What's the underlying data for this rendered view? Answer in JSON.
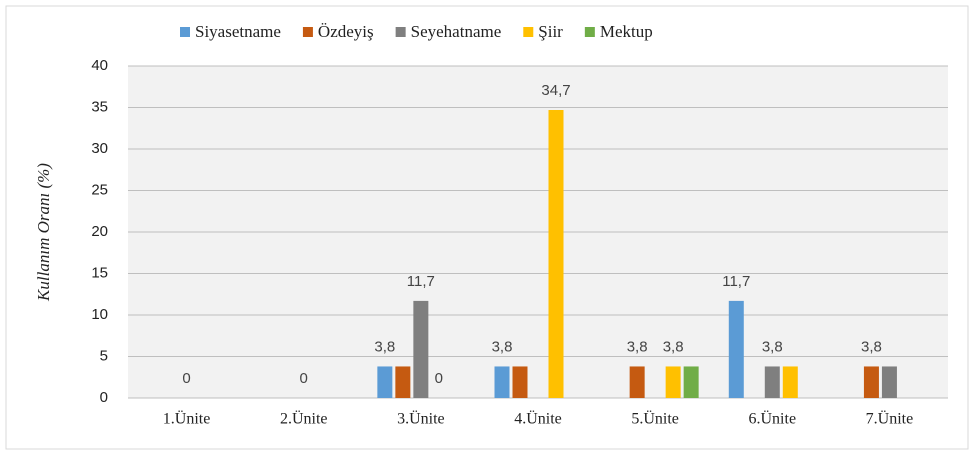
{
  "chart_data": {
    "type": "bar",
    "y_label": "Kullanım Oranı (%)",
    "categories": [
      "1.Ünite",
      "2.Ünite",
      "3.Ünite",
      "4.Ünite",
      "5.Ünite",
      "6.Ünite",
      "7.Ünite"
    ],
    "series": [
      {
        "name": "Siyasetname",
        "color": "#5b9bd5",
        "values": [
          null,
          null,
          3.8,
          3.8,
          null,
          11.7,
          null
        ],
        "value_labels": [
          null,
          null,
          "3,8",
          "3,8",
          null,
          "11,7",
          null
        ]
      },
      {
        "name": "Özdeyiş",
        "color": "#c55a11",
        "values": [
          null,
          null,
          3.8,
          3.8,
          3.8,
          null,
          3.8
        ],
        "value_labels": [
          null,
          null,
          null,
          null,
          "3,8",
          null,
          "3,8"
        ]
      },
      {
        "name": "Seyehatname",
        "color": "#7f7f7f",
        "values": [
          0,
          0,
          11.7,
          null,
          null,
          3.8,
          3.8
        ],
        "value_labels": [
          "0",
          "0",
          "11,7",
          null,
          null,
          "3,8",
          null
        ]
      },
      {
        "name": "Şiir",
        "color": "#ffc000",
        "values": [
          null,
          null,
          0,
          34.7,
          3.8,
          3.8,
          null
        ],
        "value_labels": [
          null,
          null,
          "0",
          "34,7",
          "3,8",
          null,
          null
        ]
      },
      {
        "name": "Mektup",
        "color": "#70ad47",
        "values": [
          null,
          null,
          null,
          null,
          3.8,
          null,
          null
        ],
        "value_labels": [
          null,
          null,
          null,
          null,
          null,
          null,
          null
        ]
      }
    ],
    "ylim": [
      0,
      40
    ],
    "yticks": [
      0,
      5,
      10,
      15,
      20,
      25,
      30,
      35,
      40
    ],
    "grid": true,
    "legend": "top"
  }
}
